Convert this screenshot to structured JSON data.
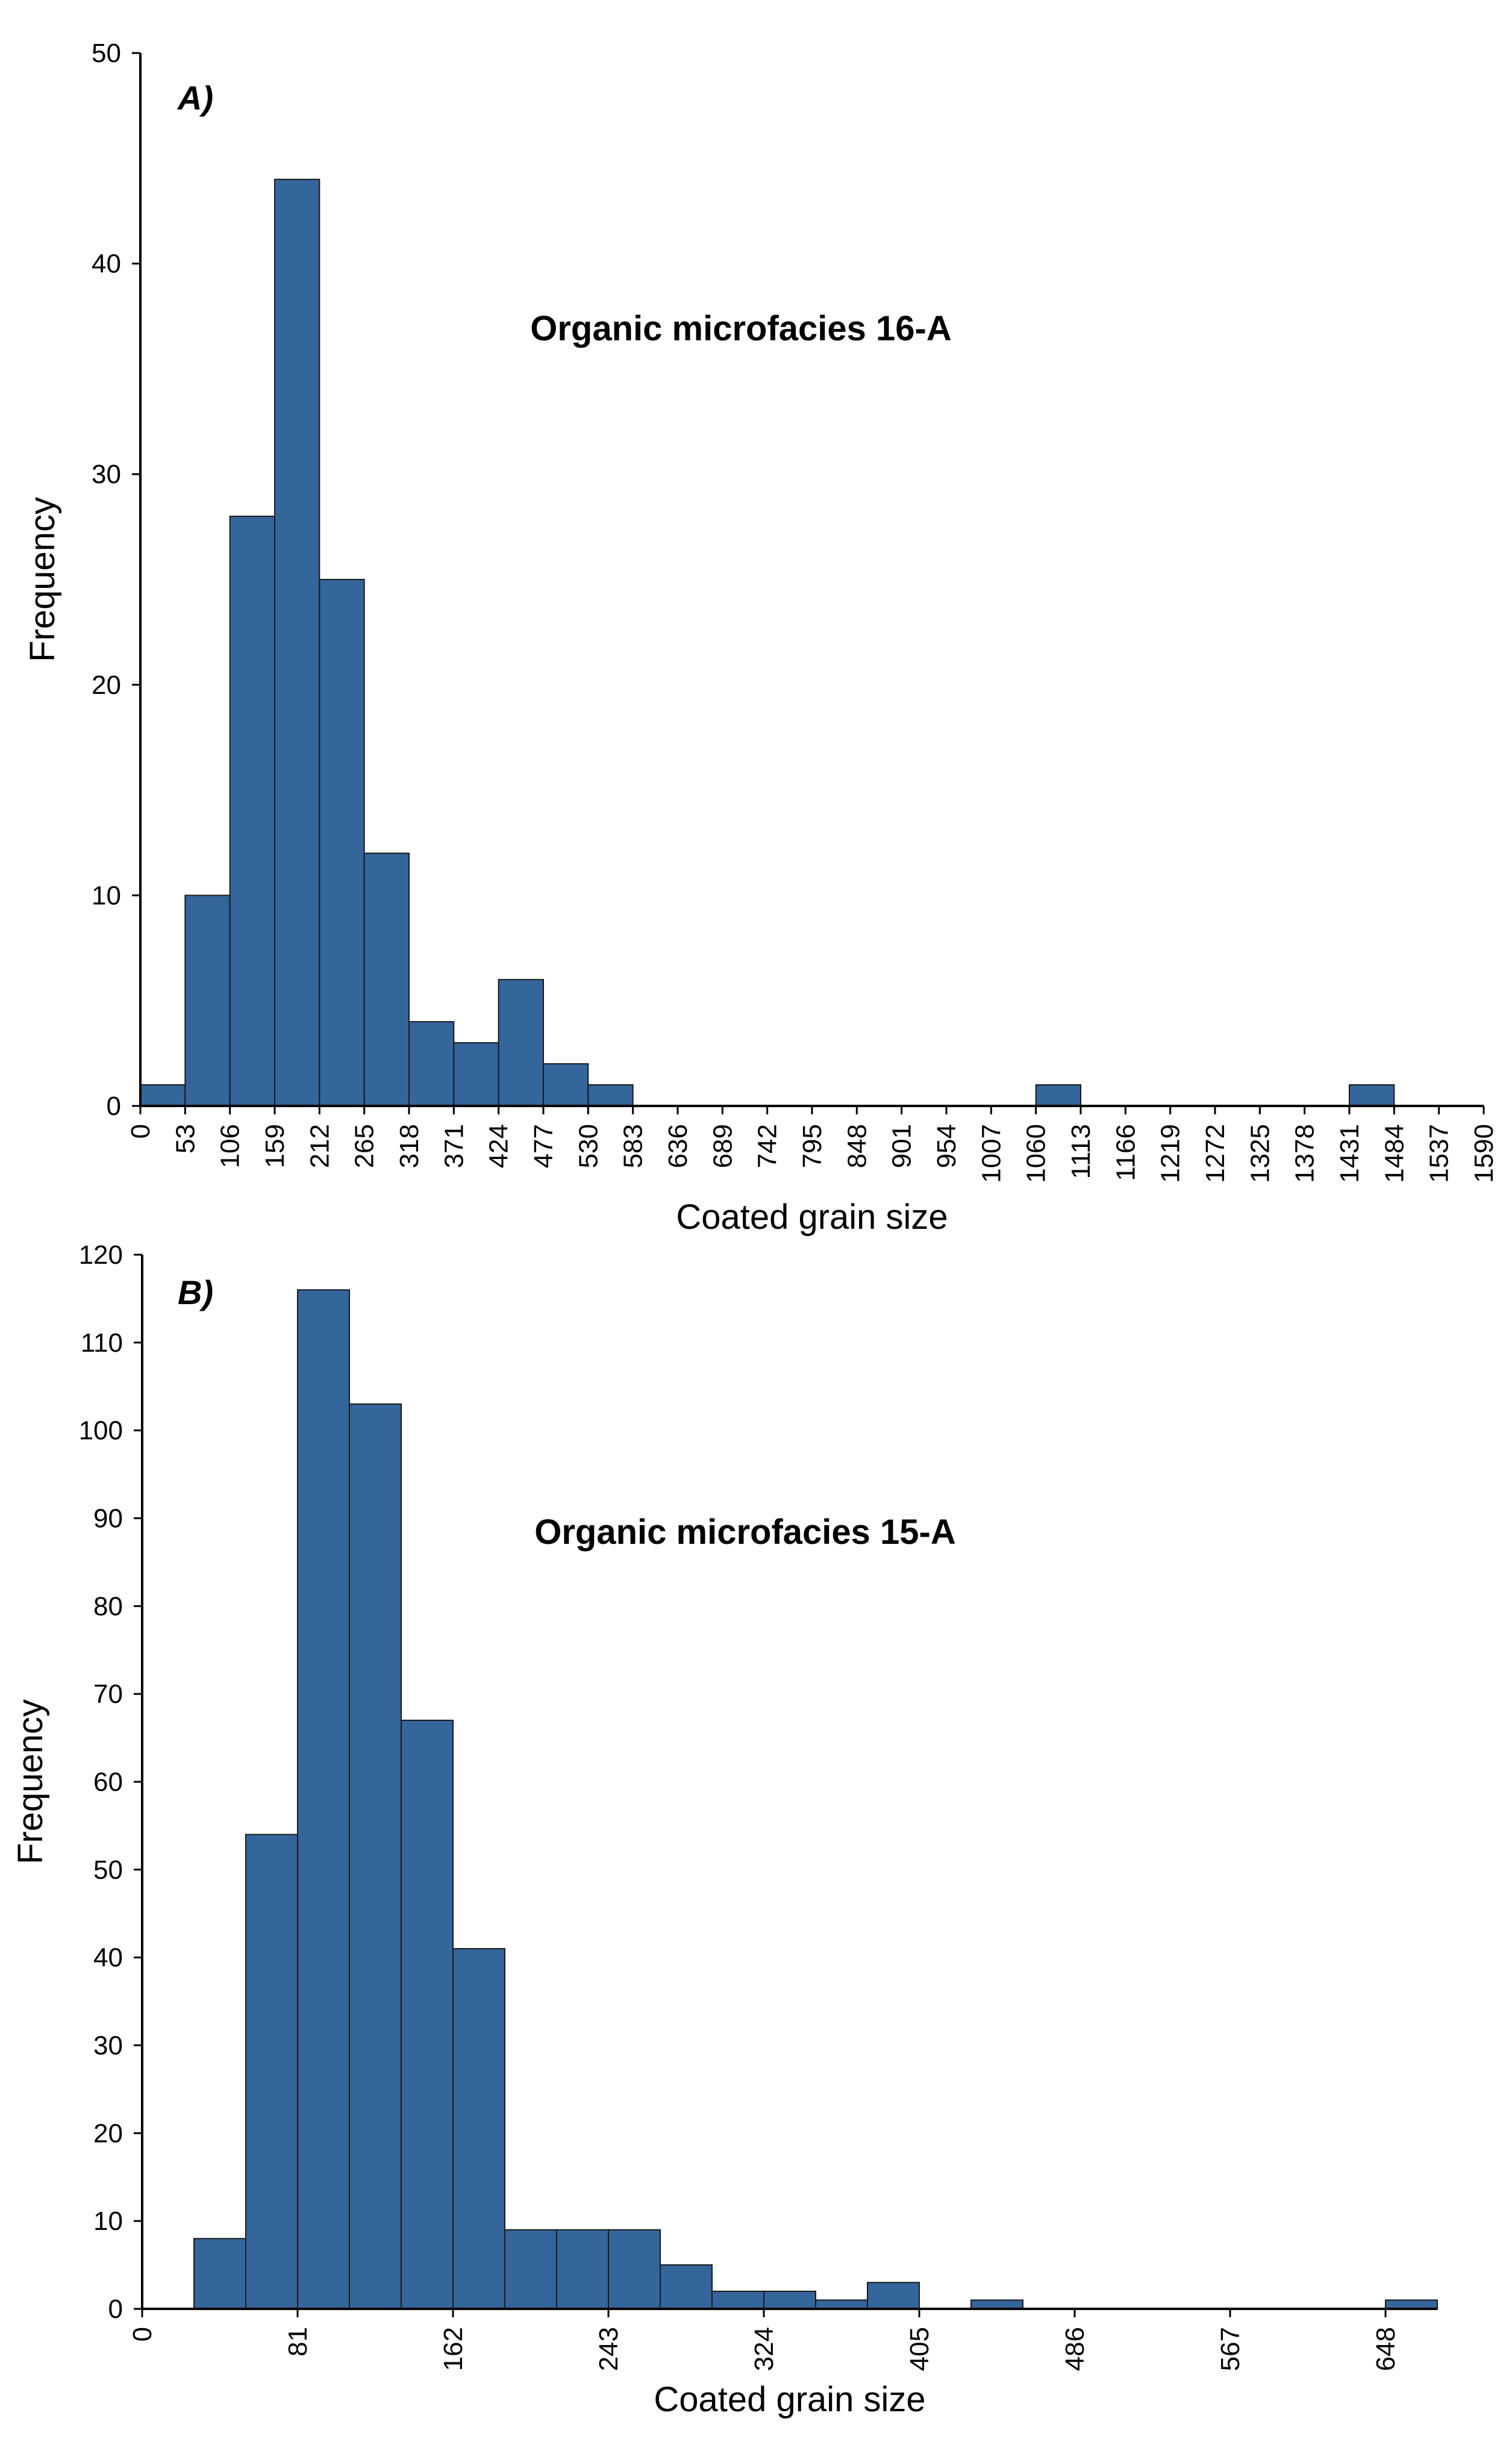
{
  "chart_data": [
    {
      "panel_label": "A)",
      "type": "bar",
      "title": "Organic microfacies 16-A",
      "xlabel": "Coated grain size",
      "ylabel": "Frequency",
      "ylim": [
        0,
        50
      ],
      "yticks": [
        0,
        10,
        20,
        30,
        40,
        50
      ],
      "bin_width": 53,
      "x_range": [
        0,
        1590
      ],
      "xticks": [
        "0",
        "53",
        "106",
        "159",
        "212",
        "265",
        "318",
        "371",
        "424",
        "477",
        "530",
        "583",
        "636",
        "689",
        "742",
        "795",
        "848",
        "901",
        "954",
        "1007",
        "1060",
        "1113",
        "1166",
        "1219",
        "1272",
        "1325",
        "1378",
        "1431",
        "1484",
        "1537",
        "1590"
      ],
      "bins": [
        {
          "start": 0,
          "end": 53,
          "value": 1
        },
        {
          "start": 53,
          "end": 106,
          "value": 10
        },
        {
          "start": 106,
          "end": 159,
          "value": 28
        },
        {
          "start": 159,
          "end": 212,
          "value": 44
        },
        {
          "start": 212,
          "end": 265,
          "value": 25
        },
        {
          "start": 265,
          "end": 318,
          "value": 12
        },
        {
          "start": 318,
          "end": 371,
          "value": 4
        },
        {
          "start": 371,
          "end": 424,
          "value": 3
        },
        {
          "start": 424,
          "end": 477,
          "value": 6
        },
        {
          "start": 477,
          "end": 530,
          "value": 2
        },
        {
          "start": 530,
          "end": 583,
          "value": 1
        },
        {
          "start": 1060,
          "end": 1113,
          "value": 1
        },
        {
          "start": 1431,
          "end": 1484,
          "value": 1
        }
      ],
      "bar_color": "#34659B",
      "grid": false
    },
    {
      "panel_label": "B)",
      "type": "bar",
      "title": "Organic microfacies 15-A",
      "xlabel": "Coated grain size",
      "ylabel": "Frequency",
      "ylim": [
        0,
        120
      ],
      "yticks": [
        0,
        10,
        20,
        30,
        40,
        50,
        60,
        70,
        80,
        90,
        100,
        110,
        120
      ],
      "bin_width": 27,
      "x_range": [
        0,
        675
      ],
      "xticks": [
        "0",
        "81",
        "162",
        "243",
        "324",
        "405",
        "486",
        "567",
        "648"
      ],
      "bins": [
        {
          "start": 27,
          "end": 54,
          "value": 8
        },
        {
          "start": 54,
          "end": 81,
          "value": 54
        },
        {
          "start": 81,
          "end": 108,
          "value": 116
        },
        {
          "start": 108,
          "end": 135,
          "value": 103
        },
        {
          "start": 135,
          "end": 162,
          "value": 67
        },
        {
          "start": 162,
          "end": 189,
          "value": 41
        },
        {
          "start": 189,
          "end": 216,
          "value": 9
        },
        {
          "start": 216,
          "end": 243,
          "value": 9
        },
        {
          "start": 243,
          "end": 270,
          "value": 9
        },
        {
          "start": 270,
          "end": 297,
          "value": 5
        },
        {
          "start": 297,
          "end": 324,
          "value": 2
        },
        {
          "start": 324,
          "end": 351,
          "value": 2
        },
        {
          "start": 351,
          "end": 378,
          "value": 1
        },
        {
          "start": 378,
          "end": 405,
          "value": 3
        },
        {
          "start": 432,
          "end": 459,
          "value": 1
        },
        {
          "start": 648,
          "end": 675,
          "value": 1
        }
      ],
      "bar_color": "#34659B",
      "grid": false
    }
  ]
}
